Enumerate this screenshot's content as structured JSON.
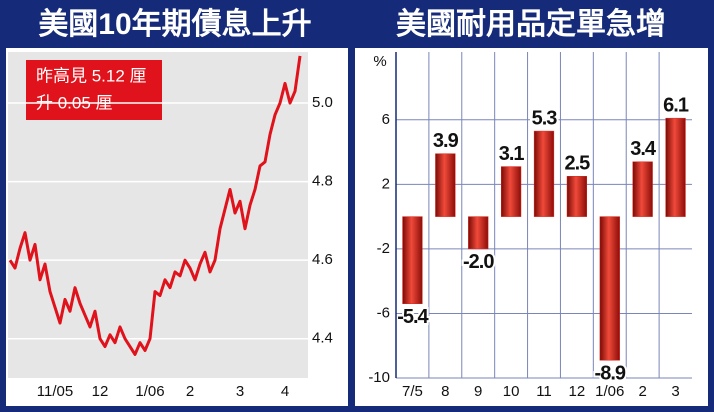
{
  "chart_data": [
    {
      "type": "line",
      "title": "美國10年期債息上升",
      "annotation": [
        "昨高見 5.12 厘",
        "升 0.05 厘"
      ],
      "categories": [
        null,
        null,
        null,
        null,
        null,
        null,
        null,
        null,
        null,
        "11/05",
        null,
        null,
        null,
        null,
        null,
        null,
        null,
        null,
        "12",
        null,
        null,
        null,
        null,
        null,
        null,
        null,
        null,
        null,
        "1/06",
        null,
        null,
        null,
        null,
        null,
        null,
        null,
        "2",
        null,
        null,
        null,
        null,
        null,
        null,
        null,
        null,
        null,
        "3",
        null,
        null,
        null,
        null,
        null,
        null,
        null,
        null,
        "4",
        null,
        null,
        null
      ],
      "values": [
        4.6,
        4.58,
        4.63,
        4.67,
        4.6,
        4.64,
        4.55,
        4.59,
        4.52,
        4.48,
        4.44,
        4.5,
        4.47,
        4.53,
        4.49,
        4.46,
        4.43,
        4.47,
        4.4,
        4.38,
        4.41,
        4.39,
        4.43,
        4.4,
        4.38,
        4.36,
        4.39,
        4.37,
        4.4,
        4.52,
        4.51,
        4.55,
        4.53,
        4.57,
        4.56,
        4.6,
        4.58,
        4.55,
        4.59,
        4.62,
        4.57,
        4.6,
        4.68,
        4.73,
        4.78,
        4.72,
        4.75,
        4.68,
        4.74,
        4.78,
        4.84,
        4.85,
        4.92,
        4.97,
        5.0,
        5.05,
        5.0,
        5.03,
        5.12
      ],
      "color": "#e0121b",
      "ylim": [
        4.3,
        5.13
      ],
      "yticks": [
        4.4,
        4.6,
        4.8,
        {
          "value": 5,
          "label": "5.0"
        }
      ],
      "grid": true
    },
    {
      "type": "bar",
      "title": "美國耐用品定單急增",
      "y_label": "%",
      "categories": [
        "7/5",
        "8",
        "9",
        "10",
        "11",
        "12",
        "1/06",
        "2",
        "3"
      ],
      "values": [
        -5.4,
        3.9,
        -2.0,
        3.1,
        5.3,
        2.5,
        -8.9,
        3.4,
        6.1
      ],
      "value_labels": [
        "-5.4",
        "3.9",
        "-2.0",
        "3.1",
        "5.3",
        "2.5",
        "-8.9",
        "3.4",
        "6.1"
      ],
      "color": "#d9261c",
      "ylim": [
        -10,
        10.2
      ],
      "yticks": [
        -10,
        -6,
        -2,
        2,
        6
      ],
      "grid": true
    }
  ]
}
